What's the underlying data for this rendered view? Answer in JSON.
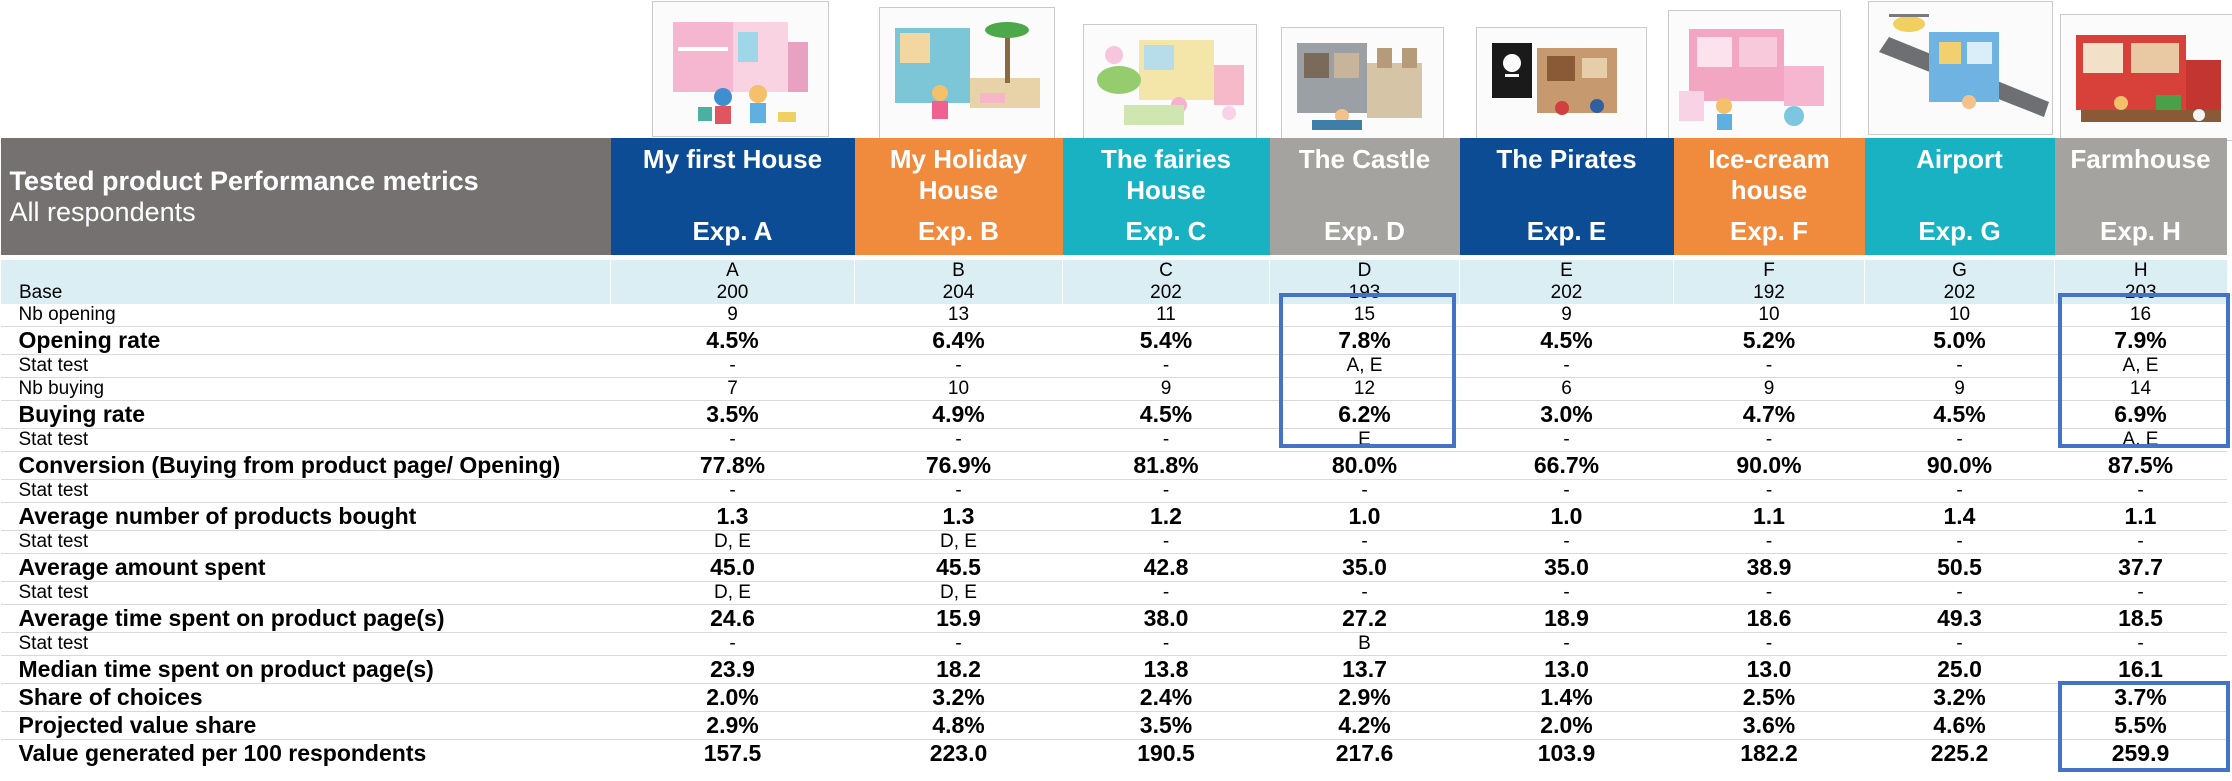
{
  "header": {
    "title": "Tested product Performance metrics",
    "subtitle": "All respondents"
  },
  "products": [
    {
      "name": "My first House",
      "exp": "Exp. A",
      "color": "#0b4c95"
    },
    {
      "name": "My Holiday House",
      "exp": "Exp. B",
      "color": "#f08a3c"
    },
    {
      "name": "The fairies House",
      "exp": "Exp. C",
      "color": "#18b2c3"
    },
    {
      "name": "The Castle",
      "exp": "Exp. D",
      "color": "#a5a3a0"
    },
    {
      "name": "The Pirates",
      "exp": "Exp. E",
      "color": "#0b4c95"
    },
    {
      "name": "Ice-cream house",
      "exp": "Exp. F",
      "color": "#f08a3c"
    },
    {
      "name": "Airport",
      "exp": "Exp.  G",
      "color": "#18b2c3"
    },
    {
      "name": "Farmhouse",
      "exp": "Exp.  H",
      "color": "#a5a3a0"
    }
  ],
  "letters": [
    "A",
    "B",
    "C",
    "D",
    "E",
    "F",
    "G",
    "H"
  ],
  "rows": [
    {
      "label": "Base",
      "style": "base",
      "values": [
        "200",
        "204",
        "202",
        "193",
        "202",
        "192",
        "202",
        "203"
      ]
    },
    {
      "label": "Nb opening",
      "style": "small",
      "values": [
        "9",
        "13",
        "11",
        "15",
        "9",
        "10",
        "10",
        "16"
      ]
    },
    {
      "label": "Opening rate",
      "style": "big",
      "values": [
        "4.5%",
        "6.4%",
        "5.4%",
        "7.8%",
        "4.5%",
        "5.2%",
        "5.0%",
        "7.9%"
      ]
    },
    {
      "label": "Stat test",
      "style": "small",
      "values": [
        "-",
        "-",
        "-",
        "A, E",
        "-",
        "-",
        "-",
        "A, E"
      ]
    },
    {
      "label": "Nb buying",
      "style": "small",
      "values": [
        "7",
        "10",
        "9",
        "12",
        "6",
        "9",
        "9",
        "14"
      ]
    },
    {
      "label": "Buying rate",
      "style": "big",
      "values": [
        "3.5%",
        "4.9%",
        "4.5%",
        "6.2%",
        "3.0%",
        "4.7%",
        "4.5%",
        "6.9%"
      ]
    },
    {
      "label": "Stat test",
      "style": "small",
      "values": [
        "-",
        "-",
        "-",
        "E",
        "-",
        "-",
        "-",
        "A, E"
      ]
    },
    {
      "label": "Conversion (Buying from product page/ Opening)",
      "style": "big",
      "values": [
        "77.8%",
        "76.9%",
        "81.8%",
        "80.0%",
        "66.7%",
        "90.0%",
        "90.0%",
        "87.5%"
      ]
    },
    {
      "label": "Stat test",
      "style": "small",
      "values": [
        "-",
        "-",
        "-",
        "-",
        "-",
        "-",
        "-",
        "-"
      ]
    },
    {
      "label": "Average number of products bought",
      "style": "big",
      "values": [
        "1.3",
        "1.3",
        "1.2",
        "1.0",
        "1.0",
        "1.1",
        "1.4",
        "1.1"
      ]
    },
    {
      "label": "Stat test",
      "style": "small",
      "values": [
        "D, E",
        "D, E",
        "-",
        "-",
        "-",
        "-",
        "-",
        "-"
      ]
    },
    {
      "label": "Average amount spent",
      "style": "big",
      "values": [
        "45.0",
        "45.5",
        "42.8",
        "35.0",
        "35.0",
        "38.9",
        "50.5",
        "37.7"
      ]
    },
    {
      "label": "Stat test",
      "style": "small",
      "values": [
        "D, E",
        "D, E",
        "-",
        "-",
        "-",
        "-",
        "-",
        "-"
      ]
    },
    {
      "label": "Average time spent on product page(s)",
      "style": "big",
      "values": [
        "24.6",
        "15.9",
        "38.0",
        "27.2",
        "18.9",
        "18.6",
        "49.3",
        "18.5"
      ]
    },
    {
      "label": "Stat test",
      "style": "small",
      "values": [
        "-",
        "-",
        "-",
        "B",
        "-",
        "-",
        "-",
        "-"
      ]
    },
    {
      "label": "Median time spent on product page(s)",
      "style": "big",
      "values": [
        "23.9",
        "18.2",
        "13.8",
        "13.7",
        "13.0",
        "13.0",
        "25.0",
        "16.1"
      ]
    },
    {
      "label": "Share of choices",
      "style": "big",
      "values": [
        "2.0%",
        "3.2%",
        "2.4%",
        "2.9%",
        "1.4%",
        "2.5%",
        "3.2%",
        "3.7%"
      ]
    },
    {
      "label": "Projected value share",
      "style": "big",
      "values": [
        "2.9%",
        "4.8%",
        "3.5%",
        "4.2%",
        "2.0%",
        "3.6%",
        "4.6%",
        "5.5%"
      ]
    },
    {
      "label": "Value generated per 100 respondents",
      "style": "big",
      "values": [
        "157.5",
        "223.0",
        "190.5",
        "217.6",
        "103.9",
        "182.2",
        "225.2",
        "259.9"
      ]
    }
  ],
  "highlight_color": "#4472c4"
}
